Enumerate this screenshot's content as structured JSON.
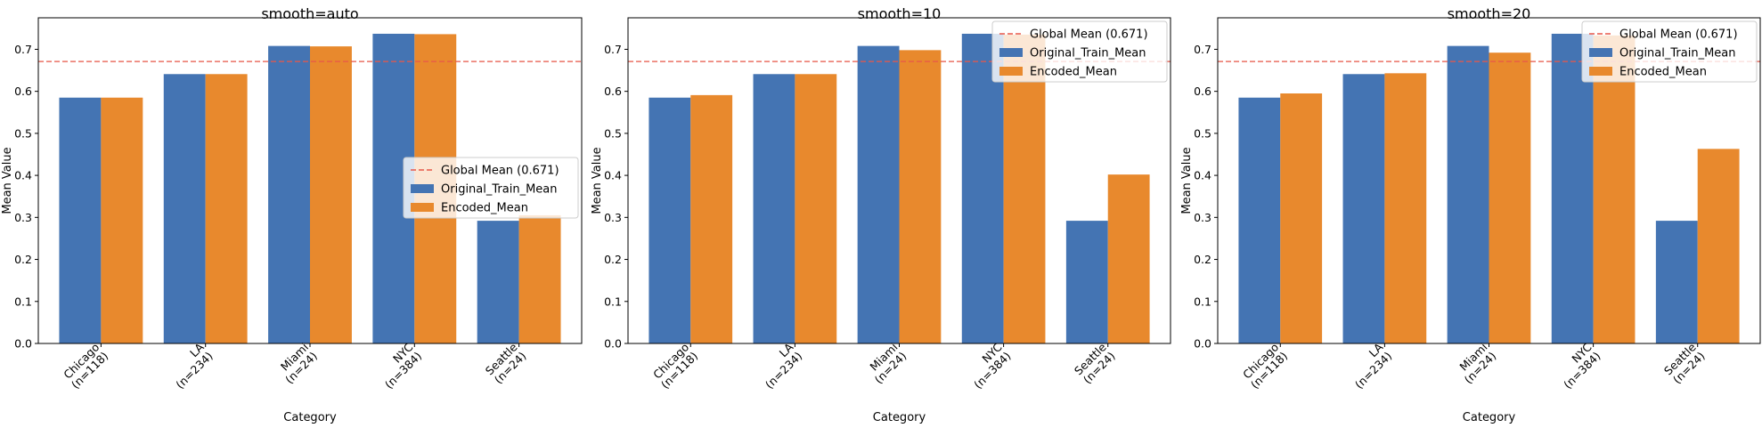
{
  "chart_data": [
    {
      "type": "bar",
      "title": "smooth=auto",
      "xlabel": "Category",
      "ylabel": "Mean Value",
      "ylim": [
        0,
        0.775
      ],
      "yticks": [
        "0.0",
        "0.1",
        "0.2",
        "0.3",
        "0.4",
        "0.5",
        "0.6",
        "0.7"
      ],
      "categories": [
        "Chicago\n(n=118)",
        "LA\n(n=234)",
        "Miami\n(n=24)",
        "NYC\n(n=384)",
        "Seattle\n(n=24)"
      ],
      "global_mean": 0.671,
      "global_mean_label": "Global Mean (0.671)",
      "legend_position": "center-right",
      "series": [
        {
          "name": "Original_Train_Mean",
          "color": "#4474b3",
          "values": [
            0.585,
            0.641,
            0.708,
            0.737,
            0.292
          ]
        },
        {
          "name": "Encoded_Mean",
          "color": "#e8892d",
          "values": [
            0.585,
            0.641,
            0.707,
            0.736,
            0.305
          ]
        }
      ]
    },
    {
      "type": "bar",
      "title": "smooth=10",
      "xlabel": "Category",
      "ylabel": "Mean Value",
      "ylim": [
        0,
        0.775
      ],
      "yticks": [
        "0.0",
        "0.1",
        "0.2",
        "0.3",
        "0.4",
        "0.5",
        "0.6",
        "0.7"
      ],
      "categories": [
        "Chicago\n(n=118)",
        "LA\n(n=234)",
        "Miami\n(n=24)",
        "NYC\n(n=384)",
        "Seattle\n(n=24)"
      ],
      "global_mean": 0.671,
      "global_mean_label": "Global Mean (0.671)",
      "legend_position": "top-right",
      "series": [
        {
          "name": "Original_Train_Mean",
          "color": "#4474b3",
          "values": [
            0.585,
            0.641,
            0.708,
            0.737,
            0.292
          ]
        },
        {
          "name": "Encoded_Mean",
          "color": "#e8892d",
          "values": [
            0.591,
            0.641,
            0.698,
            0.735,
            0.402
          ]
        }
      ]
    },
    {
      "type": "bar",
      "title": "smooth=20",
      "xlabel": "Category",
      "ylabel": "Mean Value",
      "ylim": [
        0,
        0.775
      ],
      "yticks": [
        "0.0",
        "0.1",
        "0.2",
        "0.3",
        "0.4",
        "0.5",
        "0.6",
        "0.7"
      ],
      "categories": [
        "Chicago\n(n=118)",
        "LA\n(n=234)",
        "Miami\n(n=24)",
        "NYC\n(n=384)",
        "Seattle\n(n=24)"
      ],
      "global_mean": 0.671,
      "global_mean_label": "Global Mean (0.671)",
      "legend_position": "top-right",
      "series": [
        {
          "name": "Original_Train_Mean",
          "color": "#4474b3",
          "values": [
            0.585,
            0.641,
            0.708,
            0.737,
            0.292
          ]
        },
        {
          "name": "Encoded_Mean",
          "color": "#e8892d",
          "values": [
            0.595,
            0.643,
            0.692,
            0.733,
            0.463
          ]
        }
      ]
    }
  ],
  "global_mean_color": "#e8584a"
}
